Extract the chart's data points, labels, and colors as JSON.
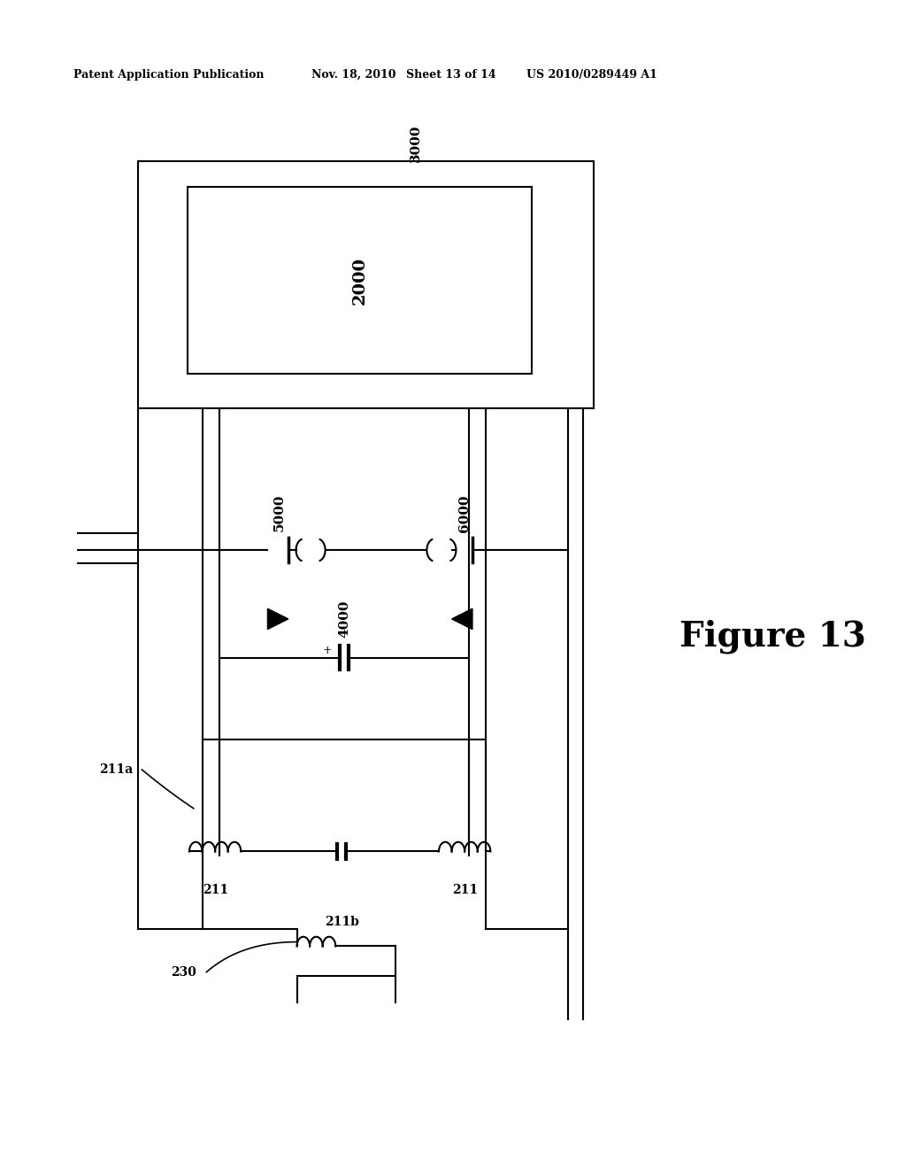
{
  "bg_color": "#ffffff",
  "header_text": "Patent Application Publication",
  "header_date": "Nov. 18, 2010",
  "header_sheet": "Sheet 13 of 14",
  "header_patent": "US 2010/0289449 A1",
  "figure_label": "Figure 13",
  "label_3000": "3000",
  "label_2000": "2000",
  "label_5000": "5000",
  "label_6000": "6000",
  "label_4000": "4000",
  "label_211a": "211a",
  "label_211": "211",
  "label_211b": "211b",
  "label_230": "230"
}
